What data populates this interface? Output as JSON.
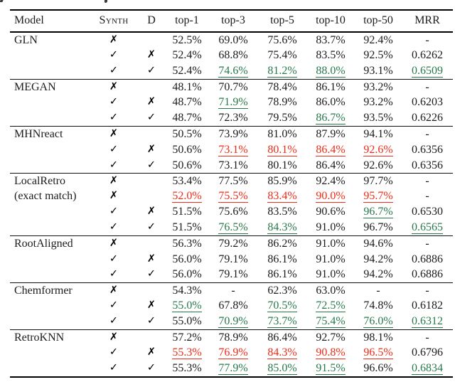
{
  "page": {
    "background": "#ffffff"
  },
  "colors": {
    "text": "#1b1b1b",
    "improvement_green": "#27794b",
    "degradation_red": "#ef2b17",
    "rule_black": "#000000"
  },
  "marks": {
    "check": "✓",
    "cross": "✗"
  },
  "table": {
    "columns": [
      "Model",
      "Synth",
      "D",
      "top-1",
      "top-3",
      "top-5",
      "top-10",
      "top-50",
      "MRR"
    ],
    "sections": [
      {
        "model": "GLN",
        "model_line2": "",
        "rows": [
          {
            "synth": "✗",
            "d": "",
            "values": [
              [
                "52.5%",
                ""
              ],
              [
                "69.0%",
                ""
              ],
              [
                "75.6%",
                ""
              ],
              [
                "83.7%",
                ""
              ],
              [
                "92.4%",
                ""
              ],
              [
                "-",
                ""
              ]
            ]
          },
          {
            "synth": "✓",
            "d": "✗",
            "values": [
              [
                "52.4%",
                ""
              ],
              [
                "68.8%",
                ""
              ],
              [
                "75.4%",
                ""
              ],
              [
                "83.5%",
                ""
              ],
              [
                "92.5%",
                ""
              ],
              [
                "0.6262",
                ""
              ]
            ]
          },
          {
            "synth": "✓",
            "d": "✓",
            "values": [
              [
                "52.4%",
                ""
              ],
              [
                "74.6%",
                "g"
              ],
              [
                "81.2%",
                "g"
              ],
              [
                "88.0%",
                "g"
              ],
              [
                "93.1%",
                ""
              ],
              [
                "0.6509",
                "g"
              ]
            ]
          }
        ]
      },
      {
        "model": "MEGAN",
        "model_line2": "",
        "rows": [
          {
            "synth": "✗",
            "d": "",
            "values": [
              [
                "48.1%",
                ""
              ],
              [
                "70.7%",
                ""
              ],
              [
                "78.4%",
                ""
              ],
              [
                "86.1%",
                ""
              ],
              [
                "93.2%",
                ""
              ],
              [
                "-",
                ""
              ]
            ]
          },
          {
            "synth": "✓",
            "d": "✗",
            "values": [
              [
                "48.7%",
                ""
              ],
              [
                "71.9%",
                "g"
              ],
              [
                "78.9%",
                ""
              ],
              [
                "86.0%",
                ""
              ],
              [
                "93.2%",
                ""
              ],
              [
                "0.6203",
                ""
              ]
            ]
          },
          {
            "synth": "✓",
            "d": "✓",
            "values": [
              [
                "48.7%",
                ""
              ],
              [
                "72.3%",
                ""
              ],
              [
                "79.5%",
                ""
              ],
              [
                "86.7%",
                "g"
              ],
              [
                "93.5%",
                ""
              ],
              [
                "0.6226",
                ""
              ]
            ]
          }
        ]
      },
      {
        "model": "MHNreact",
        "model_line2": "",
        "rows": [
          {
            "synth": "✗",
            "d": "",
            "values": [
              [
                "50.5%",
                ""
              ],
              [
                "73.9%",
                ""
              ],
              [
                "81.0%",
                ""
              ],
              [
                "87.9%",
                ""
              ],
              [
                "94.1%",
                ""
              ],
              [
                "-",
                ""
              ]
            ]
          },
          {
            "synth": "✓",
            "d": "✗",
            "values": [
              [
                "50.6%",
                ""
              ],
              [
                "73.1%",
                "r"
              ],
              [
                "80.1%",
                "r"
              ],
              [
                "86.4%",
                "r"
              ],
              [
                "92.6%",
                "r"
              ],
              [
                "0.6356",
                ""
              ]
            ]
          },
          {
            "synth": "✓",
            "d": "✓",
            "values": [
              [
                "50.6%",
                ""
              ],
              [
                "73.1%",
                ""
              ],
              [
                "80.1%",
                ""
              ],
              [
                "86.4%",
                ""
              ],
              [
                "92.6%",
                ""
              ],
              [
                "0.6356",
                ""
              ]
            ]
          }
        ]
      },
      {
        "model": "LocalRetro",
        "model_line2": "(exact match)",
        "rows": [
          {
            "synth": "✗",
            "d": "",
            "values": [
              [
                "53.4%",
                ""
              ],
              [
                "77.5%",
                ""
              ],
              [
                "85.9%",
                ""
              ],
              [
                "92.4%",
                ""
              ],
              [
                "97.7%",
                ""
              ],
              [
                "-",
                ""
              ]
            ]
          },
          {
            "synth": "✗",
            "d": "",
            "values": [
              [
                "52.0%",
                "r"
              ],
              [
                "75.5%",
                "r"
              ],
              [
                "83.4%",
                "r"
              ],
              [
                "90.0%",
                "r"
              ],
              [
                "95.7%",
                "r"
              ],
              [
                "-",
                ""
              ]
            ]
          },
          {
            "synth": "✓",
            "d": "✗",
            "values": [
              [
                "51.5%",
                ""
              ],
              [
                "75.6%",
                ""
              ],
              [
                "83.5%",
                ""
              ],
              [
                "90.6%",
                ""
              ],
              [
                "96.7%",
                "g"
              ],
              [
                "0.6530",
                ""
              ]
            ]
          },
          {
            "synth": "✓",
            "d": "✓",
            "values": [
              [
                "51.5%",
                ""
              ],
              [
                "76.5%",
                "g"
              ],
              [
                "84.3%",
                "g"
              ],
              [
                "91.0%",
                ""
              ],
              [
                "96.7%",
                ""
              ],
              [
                "0.6565",
                "g"
              ]
            ]
          }
        ]
      },
      {
        "model": "RootAligned",
        "model_line2": "",
        "rows": [
          {
            "synth": "✗",
            "d": "",
            "values": [
              [
                "56.3%",
                ""
              ],
              [
                "79.2%",
                ""
              ],
              [
                "86.2%",
                ""
              ],
              [
                "91.0%",
                ""
              ],
              [
                "94.6%",
                ""
              ],
              [
                "-",
                ""
              ]
            ]
          },
          {
            "synth": "✓",
            "d": "✗",
            "values": [
              [
                "56.0%",
                ""
              ],
              [
                "79.1%",
                ""
              ],
              [
                "86.1%",
                ""
              ],
              [
                "91.0%",
                ""
              ],
              [
                "94.2%",
                ""
              ],
              [
                "0.6886",
                ""
              ]
            ]
          },
          {
            "synth": "✓",
            "d": "✓",
            "values": [
              [
                "56.0%",
                ""
              ],
              [
                "79.1%",
                ""
              ],
              [
                "86.1%",
                ""
              ],
              [
                "91.0%",
                ""
              ],
              [
                "94.2%",
                ""
              ],
              [
                "0.6886",
                ""
              ]
            ]
          }
        ]
      },
      {
        "model": "Chemformer",
        "model_line2": "",
        "rows": [
          {
            "synth": "✗",
            "d": "",
            "values": [
              [
                "54.3%",
                ""
              ],
              [
                "-",
                ""
              ],
              [
                "62.3%",
                ""
              ],
              [
                "63.0%",
                ""
              ],
              [
                "-",
                ""
              ],
              [
                "-",
                ""
              ]
            ]
          },
          {
            "synth": "✓",
            "d": "✗",
            "values": [
              [
                "55.0%",
                "g"
              ],
              [
                "67.8%",
                ""
              ],
              [
                "70.5%",
                "g"
              ],
              [
                "72.5%",
                "g"
              ],
              [
                "74.8%",
                ""
              ],
              [
                "0.6182",
                ""
              ]
            ]
          },
          {
            "synth": "✓",
            "d": "✓",
            "values": [
              [
                "55.0%",
                ""
              ],
              [
                "70.9%",
                "g"
              ],
              [
                "73.7%",
                "g"
              ],
              [
                "75.4%",
                "g"
              ],
              [
                "76.0%",
                "g"
              ],
              [
                "0.6312",
                "g"
              ]
            ]
          }
        ]
      },
      {
        "model": "RetroKNN",
        "model_line2": "",
        "rows": [
          {
            "synth": "✗",
            "d": "",
            "values": [
              [
                "57.2%",
                ""
              ],
              [
                "78.9%",
                ""
              ],
              [
                "86.4%",
                ""
              ],
              [
                "92.7%",
                ""
              ],
              [
                "98.1%",
                ""
              ],
              [
                "-",
                ""
              ]
            ]
          },
          {
            "synth": "✓",
            "d": "✗",
            "values": [
              [
                "55.3%",
                "r"
              ],
              [
                "76.9%",
                "r"
              ],
              [
                "84.3%",
                "r"
              ],
              [
                "90.8%",
                "r"
              ],
              [
                "96.5%",
                "r"
              ],
              [
                "0.6796",
                ""
              ]
            ]
          },
          {
            "synth": "✓",
            "d": "✓",
            "values": [
              [
                "55.3%",
                ""
              ],
              [
                "77.9%",
                "g"
              ],
              [
                "85.0%",
                "g"
              ],
              [
                "91.5%",
                "g"
              ],
              [
                "96.6%",
                ""
              ],
              [
                "0.6834",
                "g"
              ]
            ]
          }
        ]
      }
    ]
  }
}
